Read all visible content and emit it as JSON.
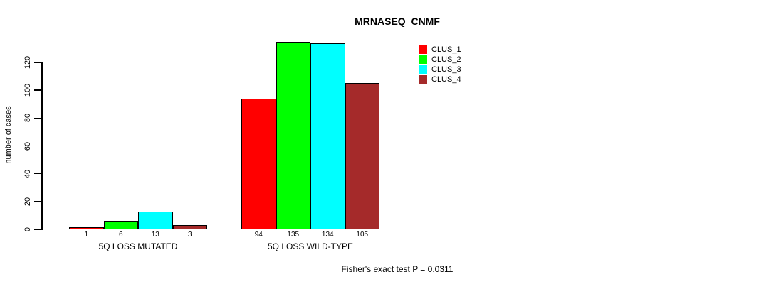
{
  "title": "MRNASEQ_CNMF",
  "footnote": "Fisher's exact test P = 0.0311",
  "chart_data": {
    "type": "bar",
    "title": "MRNASEQ_CNMF",
    "ylabel": "number of cases",
    "xlabel": "",
    "ylim": [
      0,
      135
    ],
    "yticks": [
      0,
      20,
      40,
      60,
      80,
      100,
      120
    ],
    "grid": false,
    "legend_position": "top-right",
    "categories": [
      "5Q LOSS MUTATED",
      "5Q LOSS WILD-TYPE"
    ],
    "series": [
      {
        "name": "CLUS_1",
        "color": "#ff0000",
        "values": [
          1,
          94
        ]
      },
      {
        "name": "CLUS_2",
        "color": "#00ff00",
        "values": [
          6,
          135
        ]
      },
      {
        "name": "CLUS_3",
        "color": "#00ffff",
        "values": [
          13,
          134
        ]
      },
      {
        "name": "CLUS_4",
        "color": "#a52a2a",
        "values": [
          3,
          105
        ]
      }
    ],
    "bar_value_labels": [
      [
        1,
        6,
        13,
        3
      ],
      [
        94,
        135,
        134,
        105
      ]
    ],
    "annotation": "Fisher's exact test P = 0.0311"
  },
  "colors": {
    "axis": "#000000",
    "text": "#000000",
    "background": "#ffffff"
  }
}
